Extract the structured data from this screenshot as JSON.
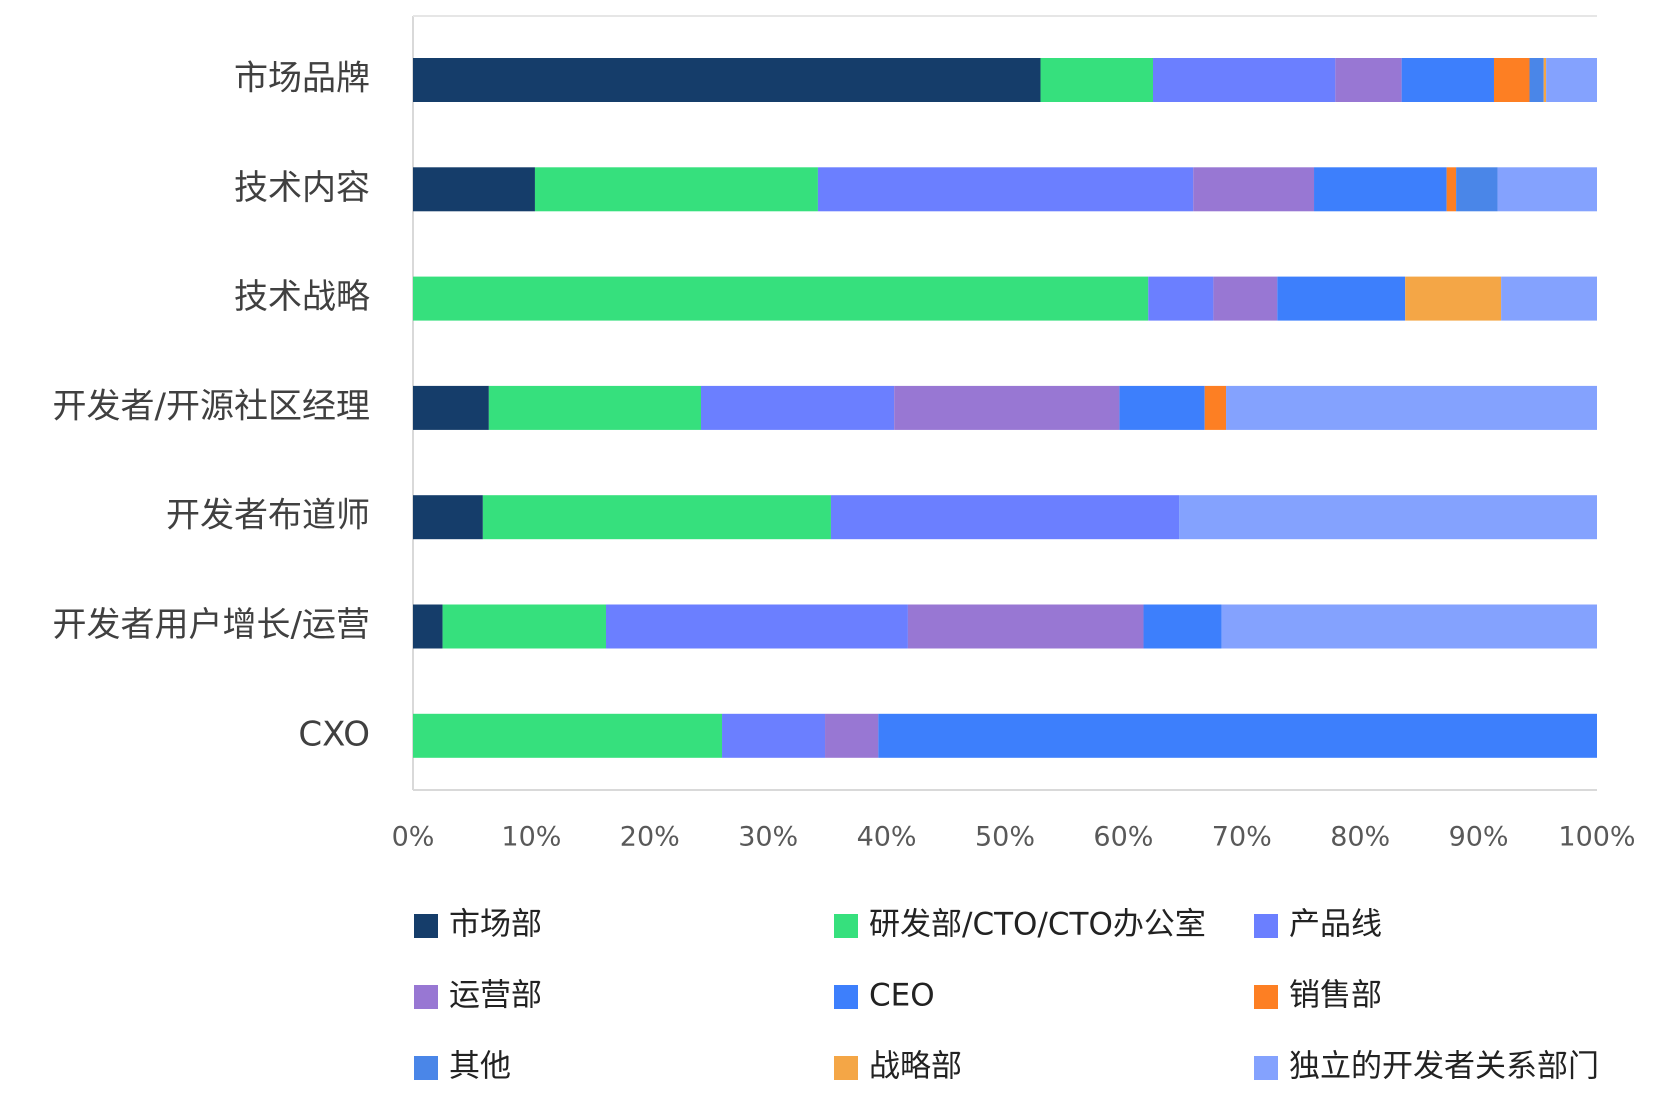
{
  "chart_data": {
    "type": "bar",
    "orientation": "horizontal",
    "stacked": "percent",
    "title": "",
    "xlabel": "",
    "ylabel": "",
    "xlim": [
      0,
      100
    ],
    "x_ticks": [
      "0%",
      "10%",
      "20%",
      "30%",
      "40%",
      "50%",
      "60%",
      "70%",
      "80%",
      "90%",
      "100%"
    ],
    "grid": false,
    "legend_position": "bottom",
    "categories": [
      "市场品牌",
      "技术内容",
      "技术战略",
      "开发者/开源社区经理",
      "开发者布道师",
      "开发者用户增长/运营",
      "CXO"
    ],
    "series": [
      {
        "name": "市场部",
        "color": "#153D6A",
        "values": [
          53,
          10.3,
          0,
          6.4,
          5.9,
          2.5,
          0
        ]
      },
      {
        "name": "研发部/CTO/CTO办公室",
        "color": "#36E07D",
        "values": [
          9.5,
          23.9,
          62.1,
          17.9,
          29.4,
          13.8,
          26.1
        ]
      },
      {
        "name": "产品线",
        "color": "#6B7FFF",
        "values": [
          15.4,
          31.7,
          5.5,
          16.3,
          29.4,
          25.5,
          8.7
        ]
      },
      {
        "name": "运营部",
        "color": "#9877D3",
        "values": [
          5.6,
          10.2,
          5.4,
          19.0,
          0,
          19.9,
          4.5
        ]
      },
      {
        "name": "CEO",
        "color": "#3D7FFC",
        "values": [
          7.8,
          11.2,
          10.8,
          7.2,
          0,
          6.6,
          60.7
        ]
      },
      {
        "name": "销售部",
        "color": "#FD7F23",
        "values": [
          3.0,
          0.8,
          0,
          1.8,
          0,
          0,
          0
        ]
      },
      {
        "name": "其他",
        "color": "#4A86E8",
        "values": [
          1.2,
          3.5,
          0,
          0,
          0,
          0,
          0
        ]
      },
      {
        "name": "战略部",
        "color": "#F4A646",
        "values": [
          0.2,
          0,
          8.1,
          0,
          0,
          0,
          0
        ]
      },
      {
        "name": "独立的开发者关系部门",
        "color": "#84A2FE",
        "values": [
          4.3,
          8.4,
          8.1,
          31.3,
          35.3,
          31.7,
          0
        ]
      }
    ]
  }
}
